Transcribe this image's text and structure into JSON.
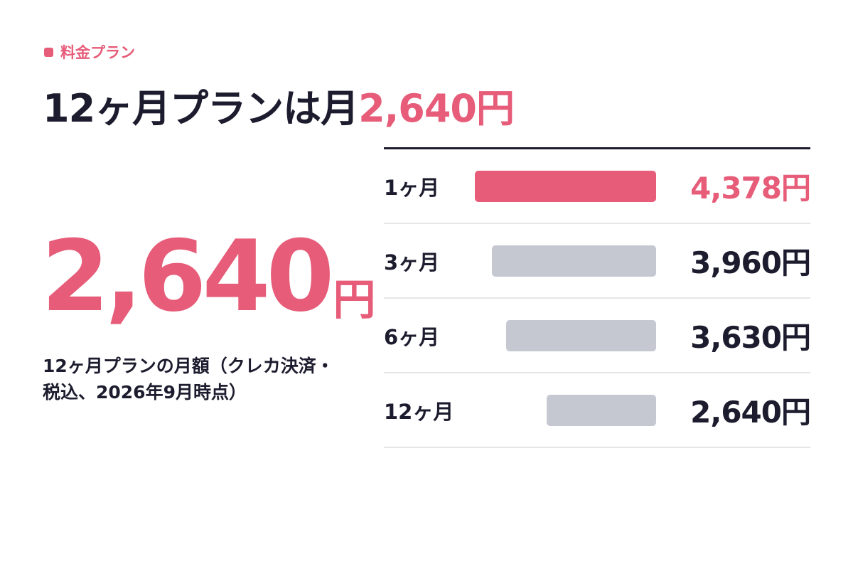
{
  "eyebrow": "料金プラン",
  "headline": {
    "prefix": "12ヶ月プランは月",
    "accent": "2,640円"
  },
  "big_price": {
    "number": "2,640",
    "unit": "円"
  },
  "caption": "12ヶ月プランの月額（クレカ決済・税込、2026年9月時点）",
  "colors": {
    "accent": "#e65c79",
    "neutral_bar": "#c6c8d1",
    "ink": "#1c1c2e",
    "divider": "#e6e6e9"
  },
  "chart_data": {
    "type": "bar",
    "orientation": "horizontal",
    "title": "",
    "xlabel": "",
    "ylabel": "",
    "categories": [
      "1ヶ月",
      "3ヶ月",
      "6ヶ月",
      "12ヶ月"
    ],
    "values": [
      4378,
      3960,
      3630,
      2640
    ],
    "value_labels": [
      "4,378円",
      "3,960円",
      "3,630円",
      "2,640円"
    ],
    "highlight_index": 0,
    "grid": false,
    "legend": "none"
  }
}
